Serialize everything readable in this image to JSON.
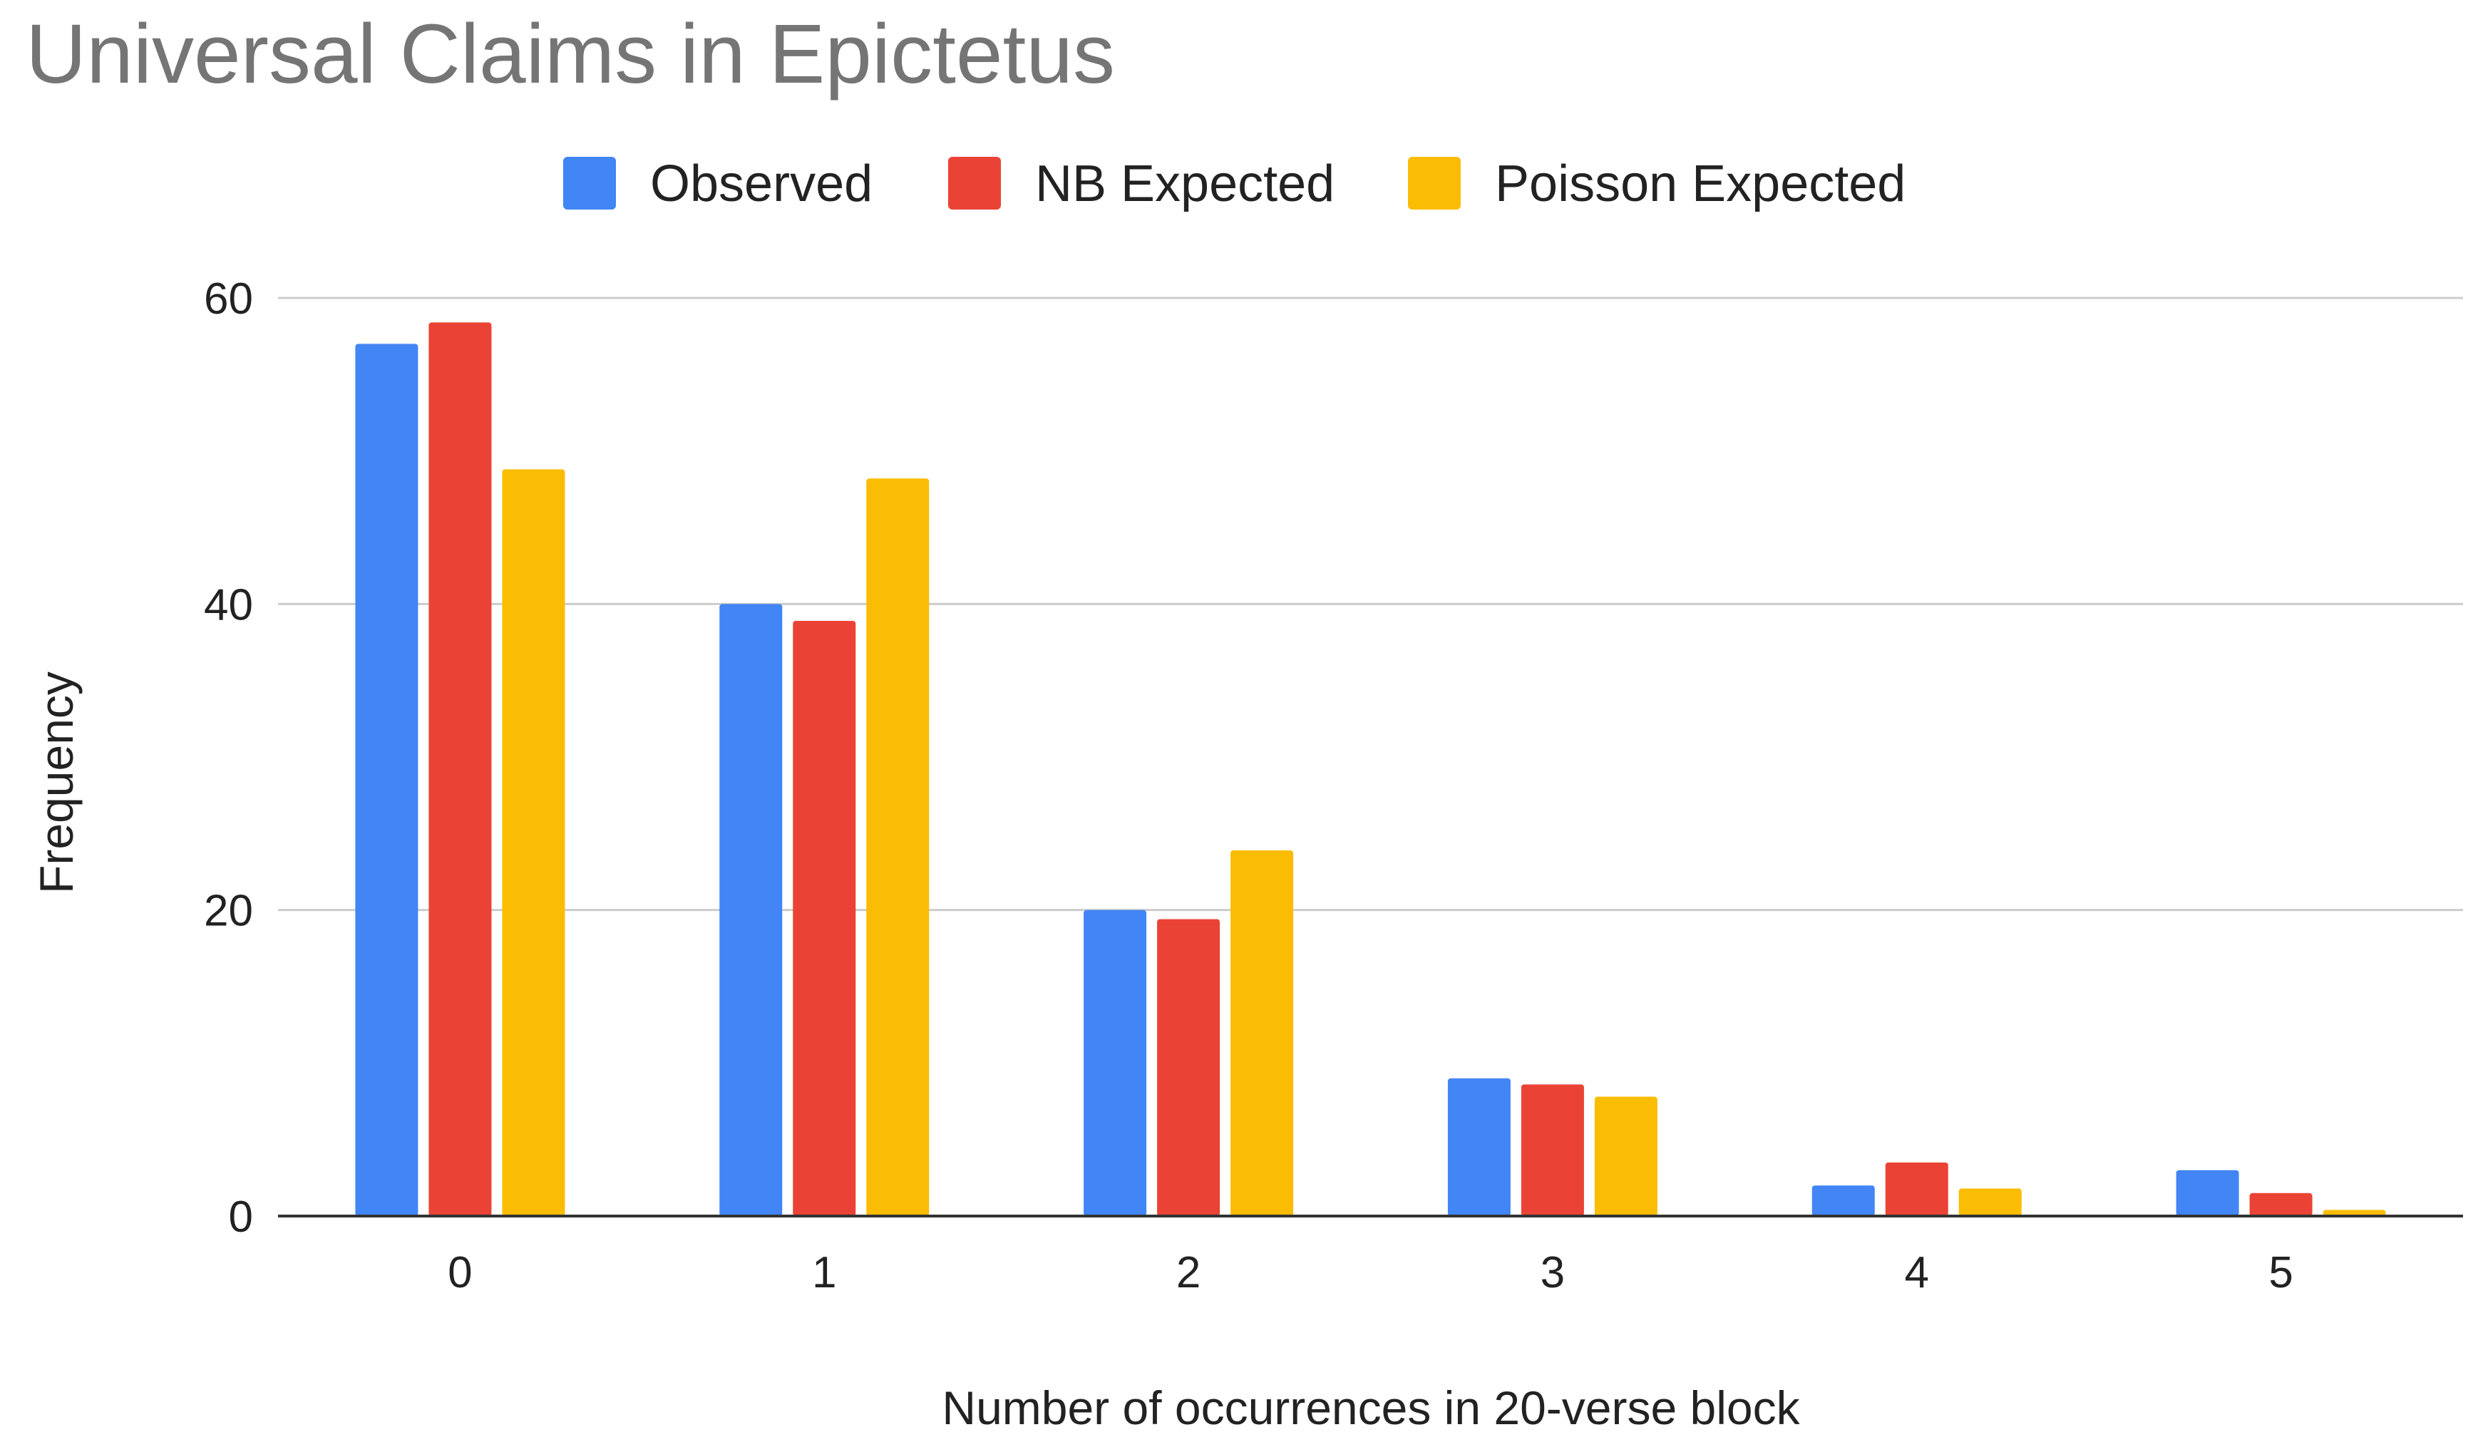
{
  "chart_data": {
    "type": "bar",
    "title": "Universal Claims in Epictetus",
    "xlabel": "Number of occurrences in 20-verse block",
    "ylabel": "Frequency",
    "categories": [
      "0",
      "1",
      "2",
      "3",
      "4",
      "5"
    ],
    "series": [
      {
        "name": "Observed",
        "color": "#4285F4",
        "values": [
          57,
          40,
          20,
          9,
          2,
          3
        ]
      },
      {
        "name": "NB Expected",
        "color": "#EA4335",
        "values": [
          58.4,
          38.9,
          19.4,
          8.6,
          3.5,
          1.5
        ]
      },
      {
        "name": "Poisson Expected",
        "color": "#FBBC04",
        "values": [
          48.8,
          48.2,
          23.9,
          7.8,
          1.8,
          0.4
        ]
      }
    ],
    "ylim": [
      0,
      60
    ],
    "yticks": [
      0,
      20,
      40,
      60
    ],
    "grid": true,
    "legend": "top-center"
  }
}
